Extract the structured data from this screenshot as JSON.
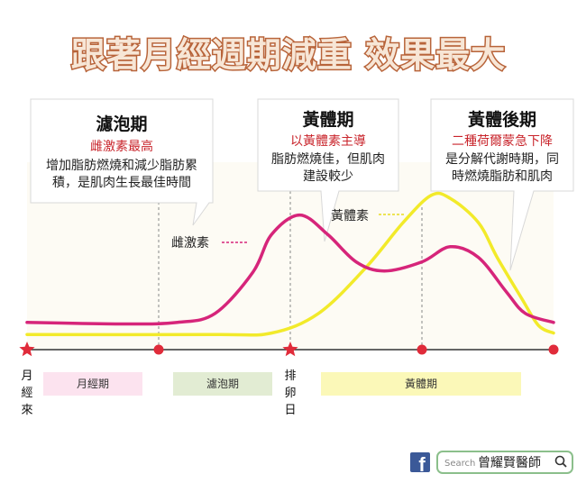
{
  "chart_data": {
    "type": "line",
    "title": "跟著月經週期減重 效果最大",
    "x_domain": [
      0,
      28
    ],
    "y_domain": [
      0,
      100
    ],
    "series": [
      {
        "name": "雌激素",
        "color": "#d6257a",
        "points": [
          [
            0,
            12
          ],
          [
            5,
            11
          ],
          [
            8,
            12
          ],
          [
            10,
            18
          ],
          [
            12,
            45
          ],
          [
            13,
            70
          ],
          [
            14.5,
            83
          ],
          [
            16,
            70
          ],
          [
            17.5,
            52
          ],
          [
            19,
            46
          ],
          [
            21,
            52
          ],
          [
            22.5,
            62
          ],
          [
            24,
            55
          ],
          [
            25.5,
            32
          ],
          [
            26.5,
            18
          ],
          [
            28,
            12
          ]
        ]
      },
      {
        "name": "黃體素",
        "color": "#f2ea2a",
        "points": [
          [
            0,
            4
          ],
          [
            10,
            4
          ],
          [
            13,
            5
          ],
          [
            15.5,
            18
          ],
          [
            18,
            48
          ],
          [
            20,
            78
          ],
          [
            21.5,
            96
          ],
          [
            22.5,
            94
          ],
          [
            24,
            78
          ],
          [
            25,
            55
          ],
          [
            26.3,
            28
          ],
          [
            27.2,
            10
          ],
          [
            28,
            5
          ]
        ]
      }
    ],
    "axis_markers": [
      {
        "at": 0,
        "type": "star",
        "color": "#e02b3a",
        "label": "月經來"
      },
      {
        "at": 7,
        "type": "dot",
        "color": "#e02b3a"
      },
      {
        "at": 14,
        "type": "star",
        "color": "#e02b3a",
        "label": "排卵日"
      },
      {
        "at": 21,
        "type": "dot",
        "color": "#e02b3a"
      },
      {
        "at": 28,
        "type": "dot",
        "color": "#e02b3a"
      }
    ],
    "phases": [
      {
        "name": "月經期",
        "color": "#fce3ef"
      },
      {
        "name": "濾泡期",
        "color": "#e2ecd3"
      },
      {
        "name": "黃體期",
        "color": "#fbf8b8"
      }
    ]
  },
  "annotations": [
    {
      "title": "濾泡期",
      "subtitle": "雌激素最高",
      "lines": [
        "增加脂肪燃燒和減少脂肪累",
        "積，是肌肉生長最佳時間"
      ]
    },
    {
      "title": "黃體期",
      "subtitle": "以黃體素主導",
      "lines": [
        "脂肪燃燒佳，但肌肉",
        "建設較少"
      ]
    },
    {
      "title": "黃體後期",
      "subtitle": "二種荷爾蒙急下降",
      "lines": [
        "是分解代謝時期，同",
        "時燃燒脂肪和肌肉"
      ]
    }
  ],
  "footer": {
    "facebook_icon": "facebook-icon",
    "search_placeholder": "Search",
    "search_name": "曾耀賢醫師",
    "search_icon": "magnifier-icon"
  }
}
